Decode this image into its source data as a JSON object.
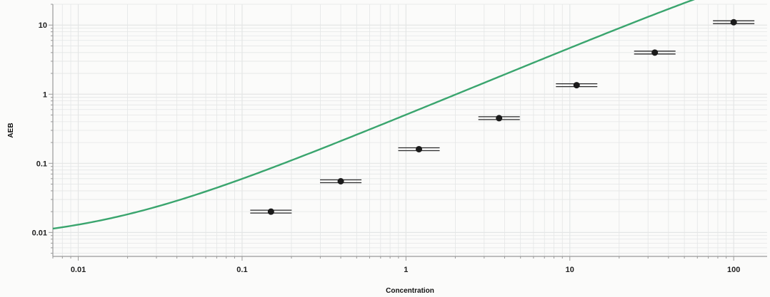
{
  "chart_data": {
    "type": "scatter",
    "title": "",
    "xlabel": "Concentration",
    "ylabel": "AEB",
    "xscale": "log",
    "yscale": "log",
    "xlim": [
      0.007,
      160
    ],
    "ylim": [
      0.0045,
      20
    ],
    "grid": true,
    "legend": "none",
    "x_ticks": [
      {
        "value": 0.01,
        "label": "0.01"
      },
      {
        "value": 0.1,
        "label": "0.1"
      },
      {
        "value": 1,
        "label": "1"
      },
      {
        "value": 10,
        "label": "10"
      },
      {
        "value": 100,
        "label": "100"
      }
    ],
    "y_ticks": [
      {
        "value": 0.01,
        "label": "0.01"
      },
      {
        "value": 0.1,
        "label": "0.1"
      },
      {
        "value": 1,
        "label": "1"
      },
      {
        "value": 10,
        "label": "10"
      }
    ],
    "points": [
      {
        "x": 0.15,
        "y": 0.02
      },
      {
        "x": 0.4,
        "y": 0.055
      },
      {
        "x": 1.2,
        "y": 0.16
      },
      {
        "x": 3.7,
        "y": 0.45
      },
      {
        "x": 11.0,
        "y": 1.35
      },
      {
        "x": 33.0,
        "y": 4.0
      },
      {
        "x": 100.0,
        "y": 11.0
      }
    ],
    "fit_curve": {
      "type": "four-parameter-logistic",
      "bottom": 0.0075,
      "top": 220,
      "ec50": 500,
      "hill": 0.98
    },
    "colors": {
      "curve": "#3aa56e",
      "points": "#1a1a1a",
      "error_bars": "#2a2a2a",
      "grid": "#e4e6e6",
      "axis": "#9a9a9a"
    }
  }
}
